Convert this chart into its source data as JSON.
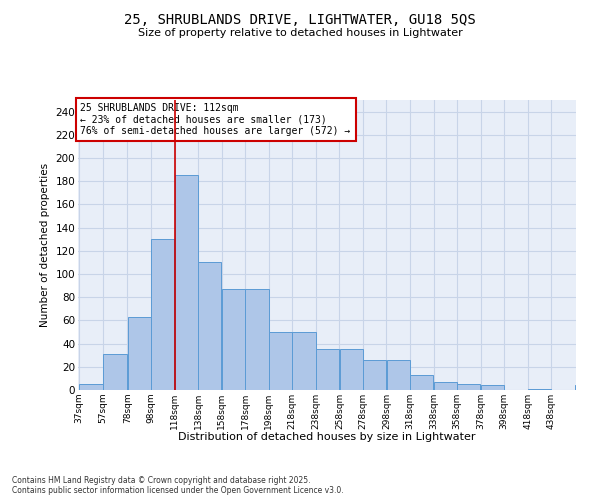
{
  "title_line1": "25, SHRUBLANDS DRIVE, LIGHTWATER, GU18 5QS",
  "title_line2": "Size of property relative to detached houses in Lightwater",
  "xlabel": "Distribution of detached houses by size in Lightwater",
  "ylabel": "Number of detached properties",
  "annotation_line1": "25 SHRUBLANDS DRIVE: 112sqm",
  "annotation_line2": "← 23% of detached houses are smaller (173)",
  "annotation_line3": "76% of semi-detached houses are larger (572) →",
  "bar_values": [
    5,
    31,
    63,
    130,
    185,
    110,
    87,
    87,
    50,
    50,
    35,
    35,
    26,
    26,
    13,
    7,
    5,
    4,
    0,
    1,
    0,
    4
  ],
  "bin_edges": [
    37,
    57,
    78,
    98,
    118,
    138,
    158,
    178,
    198,
    218,
    238,
    258,
    278,
    298,
    318,
    338,
    358,
    378,
    398,
    418,
    438,
    458
  ],
  "tick_labels": [
    "37sqm",
    "57sqm",
    "78sqm",
    "98sqm",
    "118sqm",
    "138sqm",
    "158sqm",
    "178sqm",
    "198sqm",
    "218sqm",
    "238sqm",
    "258sqm",
    "278sqm",
    "298sqm",
    "318sqm",
    "338sqm",
    "358sqm",
    "378sqm",
    "398sqm",
    "418sqm",
    "438sqm"
  ],
  "bar_color": "#aec6e8",
  "bar_edge_color": "#5b9bd5",
  "vline_x": 118,
  "vline_color": "#cc0000",
  "ylim": [
    0,
    250
  ],
  "yticks": [
    0,
    20,
    40,
    60,
    80,
    100,
    120,
    140,
    160,
    180,
    200,
    220,
    240
  ],
  "grid_color": "#c8d4e8",
  "bg_color": "#e8eef8",
  "annotation_box_color": "#cc0000",
  "footnote_line1": "Contains HM Land Registry data © Crown copyright and database right 2025.",
  "footnote_line2": "Contains public sector information licensed under the Open Government Licence v3.0."
}
